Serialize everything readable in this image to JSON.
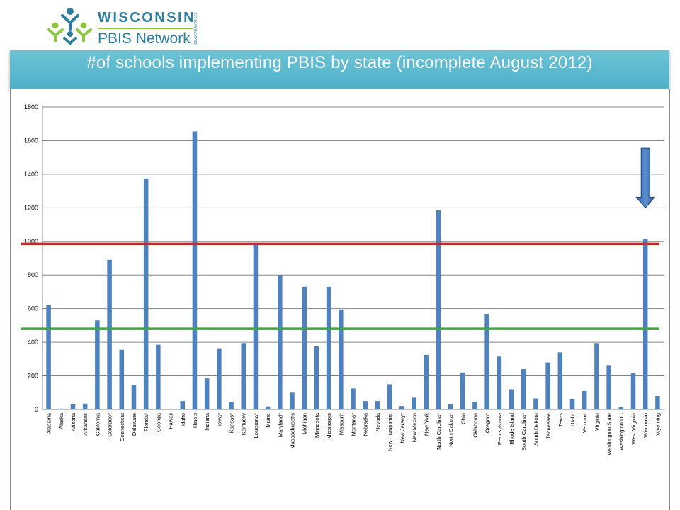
{
  "logo": {
    "line1": "WISCONSIN",
    "line2": "PBIS Network",
    "tagline": "IDEA/CFDA #84.027"
  },
  "title": "#of schools implementing PBIS by state (incomplete August 2012)",
  "colors": {
    "bar": "#4f81bd",
    "red_line": "#e02020",
    "green_line": "#3aaa35",
    "title_bar": "#5bb6cc"
  },
  "chart_data": {
    "type": "bar",
    "title": "",
    "xlabel": "",
    "ylabel": "",
    "ylim": [
      0,
      1800
    ],
    "yticks": [
      0,
      200,
      400,
      600,
      800,
      1000,
      1200,
      1400,
      1600,
      1800
    ],
    "grid": true,
    "categories": [
      "Alabama",
      "Alaska",
      "Arizona",
      "Arkansas",
      "California",
      "Colorado*",
      "Connecticut",
      "Delaware",
      "Florida*",
      "Georgia",
      "Hawaii",
      "Idaho",
      "Illinois",
      "Indiana",
      "Iowa*",
      "Kansas*",
      "Kentucky",
      "Louisiana*",
      "Maine",
      "Maryland*",
      "Massachusetts",
      "Michigan",
      "Minnesota",
      "Mississippi",
      "Missouri*",
      "Montana*",
      "Nebraska",
      "Nevada",
      "New Hampshire",
      "New Jersey*",
      "New Mexico",
      "New York",
      "North Carolina*",
      "North Dakota*",
      "Ohio",
      "Oklahoma",
      "Oregon*",
      "Pennsylvania",
      "Rhode Island",
      "South Carolina*",
      "South Dakota",
      "Tennessee",
      "Texas",
      "Utah*",
      "Vermont",
      "Virginia",
      "Washington State",
      "Washington DC",
      "West Virginia",
      "Wisconsin",
      "Wyoming"
    ],
    "values": [
      620,
      5,
      30,
      35,
      530,
      890,
      355,
      145,
      1375,
      385,
      0,
      50,
      1655,
      185,
      360,
      45,
      395,
      985,
      18,
      800,
      100,
      730,
      375,
      730,
      595,
      125,
      50,
      50,
      150,
      20,
      70,
      325,
      1185,
      30,
      220,
      45,
      565,
      315,
      120,
      240,
      65,
      280,
      340,
      60,
      110,
      395,
      260,
      15,
      215,
      1015,
      80
    ],
    "reference_lines": [
      {
        "value": 985,
        "color": "#e02020"
      },
      {
        "value": 480,
        "color": "#3aaa35"
      }
    ],
    "annotation": {
      "type": "arrow",
      "category": "Wisconsin",
      "from": 1555,
      "to": 1200
    }
  }
}
